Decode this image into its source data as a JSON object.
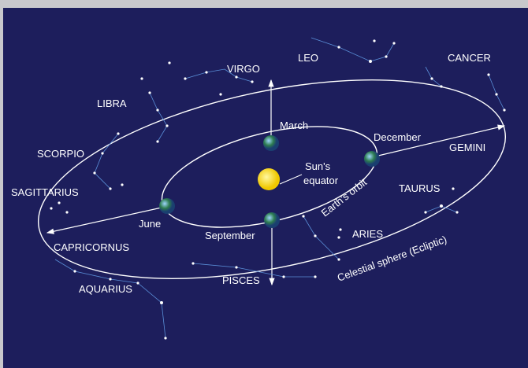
{
  "constellations": [
    "VIRGO",
    "LEO",
    "CANCER",
    "LIBRA",
    "SCORPIO",
    "SAGITTARIUS",
    "CAPRICORNUS",
    "AQUARIUS",
    "PISCES",
    "ARIES",
    "TAURUS",
    "GEMINI"
  ],
  "months": [
    "March",
    "December",
    "June",
    "September"
  ],
  "sun_equator": [
    "Sun's",
    "equator"
  ],
  "earth_orbit": "Earth's orbit",
  "celestial_sphere": "Celestial sphere (Ecliptic)"
}
